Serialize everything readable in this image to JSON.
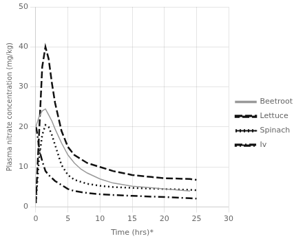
{
  "chart_data": {
    "type": "line",
    "xlabel": "Time (hrs)*",
    "ylabel": "Plasma nitrate concentration (mg/kg)",
    "xlim": [
      0,
      30
    ],
    "ylim": [
      0,
      50
    ],
    "xticks": [
      0,
      5,
      10,
      15,
      20,
      25,
      30
    ],
    "yticks": [
      0,
      10,
      20,
      30,
      40,
      50
    ],
    "grid": true,
    "legend": "right",
    "series": [
      {
        "name": "Beetroot",
        "color": "#999999",
        "line_style": "solid",
        "x": [
          0,
          0.5,
          1.0,
          1.5,
          2.0,
          2.5,
          3.0,
          4.0,
          5.0,
          6.0,
          7.0,
          8.0,
          10.0,
          12.0,
          15.0,
          18.0,
          20.0,
          24.0
        ],
        "values": [
          20.0,
          22.5,
          24.0,
          24.5,
          23.0,
          21.5,
          19.5,
          16.0,
          13.0,
          11.0,
          9.5,
          8.5,
          7.0,
          6.0,
          5.2,
          4.8,
          4.5,
          4.0
        ]
      },
      {
        "name": "Lettuce",
        "color": "#111111",
        "line_style": "dashed",
        "x": [
          0,
          0.5,
          1.0,
          1.5,
          2.0,
          2.5,
          3.0,
          4.0,
          5.0,
          6.0,
          8.0,
          10.0,
          12.0,
          15.0,
          18.0,
          20.0,
          24.0,
          25.0
        ],
        "values": [
          1.0,
          18.0,
          35.0,
          40.0,
          37.0,
          31.0,
          26.0,
          19.0,
          15.0,
          13.0,
          11.0,
          10.0,
          9.0,
          8.0,
          7.5,
          7.2,
          7.0,
          6.8
        ]
      },
      {
        "name": "Spinach",
        "color": "#111111",
        "line_style": "dotted",
        "x": [
          0,
          0.5,
          1.0,
          1.5,
          2.0,
          2.5,
          3.0,
          4.0,
          5.0,
          6.0,
          8.0,
          10.0,
          12.0,
          15.0,
          18.0,
          20.0,
          24.0,
          25.0
        ],
        "values": [
          1.0,
          12.0,
          18.0,
          20.5,
          20.0,
          18.0,
          15.5,
          10.5,
          8.0,
          6.8,
          5.8,
          5.3,
          5.0,
          4.8,
          4.6,
          4.5,
          4.3,
          4.2
        ]
      },
      {
        "name": "Iv",
        "color": "#111111",
        "line_style": "dashdot",
        "x": [
          0,
          0.1,
          0.25,
          0.5,
          0.75,
          1.0,
          1.5,
          2.0,
          3.0,
          4.0,
          5.0,
          6.0,
          8.0,
          10.0,
          12.0,
          15.0,
          18.0,
          20.0,
          24.0,
          25.0
        ],
        "values": [
          20.0,
          19.5,
          18.0,
          15.0,
          13.0,
          11.5,
          9.0,
          8.0,
          6.5,
          5.5,
          4.5,
          4.0,
          3.5,
          3.2,
          3.0,
          2.8,
          2.6,
          2.5,
          2.2,
          2.1
        ]
      }
    ]
  }
}
